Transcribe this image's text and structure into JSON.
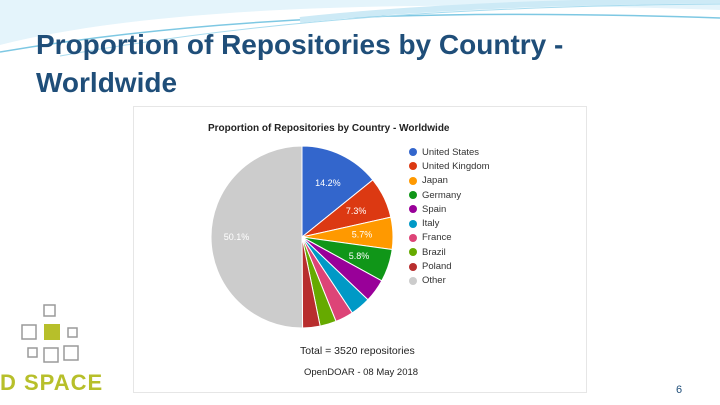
{
  "slide": {
    "title": "Proportion of Repositories by Country - Worldwide",
    "page_number": "6",
    "logo_text": "D SPACE"
  },
  "colors": {
    "title": "#1f4e79",
    "accent": "#b7bf2a"
  },
  "chart_data": {
    "type": "pie",
    "title": "Proportion of Repositories by Country - Worldwide",
    "legend_position": "right",
    "start_angle_deg": 0,
    "slices": [
      {
        "name": "United States",
        "value": 14.2,
        "label": "14.2%",
        "color": "#3366cc"
      },
      {
        "name": "United Kingdom",
        "value": 7.3,
        "label": "7.3%",
        "color": "#dc3912"
      },
      {
        "name": "Japan",
        "value": 5.7,
        "label": "5.7%",
        "color": "#ff9900"
      },
      {
        "name": "Germany",
        "value": 5.8,
        "label": "5.8%",
        "color": "#109618"
      },
      {
        "name": "Spain",
        "value": 4.1,
        "label": "",
        "color": "#990099"
      },
      {
        "name": "Italy",
        "value": 3.6,
        "label": "",
        "color": "#0099c6"
      },
      {
        "name": "France",
        "value": 3.2,
        "label": "",
        "color": "#dd4477"
      },
      {
        "name": "Brazil",
        "value": 2.9,
        "label": "",
        "color": "#66aa00"
      },
      {
        "name": "Poland",
        "value": 3.1,
        "label": "",
        "color": "#b82e2e"
      },
      {
        "name": "Other",
        "value": 50.1,
        "label": "50.1%",
        "color": "#cccccc"
      }
    ],
    "total_text": "Total = 3520 repositories",
    "source_text": "OpenDOAR - 08 May 2018"
  }
}
